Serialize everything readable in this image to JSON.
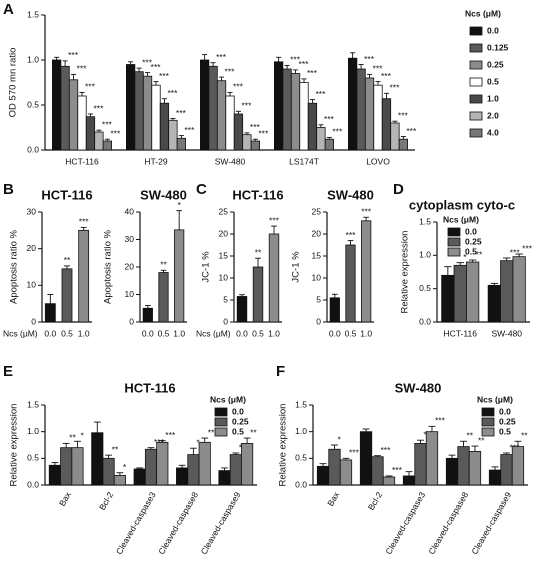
{
  "chart_data": [
    {
      "type": "bar",
      "panel": "A",
      "ylabel": "OD 570 mn ratio",
      "legend_title": "Ncs (μM)",
      "categories": [
        "HCT-116",
        "HT-29",
        "SW-480",
        "LS174T",
        "LOVO"
      ],
      "ylim": [
        0,
        1.5
      ],
      "yticks": [
        {
          "value": 0,
          "label": "0.0"
        },
        0.5,
        {
          "value": 1,
          "label": "1.0"
        },
        1.5
      ],
      "series": [
        {
          "name": "0.0",
          "color": "#111111",
          "values": [
            1.0,
            0.95,
            1.0,
            0.98,
            1.02
          ],
          "errors": [
            0.03,
            0.03,
            0.06,
            0.05,
            0.06
          ]
        },
        {
          "name": "0.125",
          "color": "#5a5a5a",
          "values": [
            0.93,
            0.87,
            0.93,
            0.9,
            0.9
          ],
          "errors": [
            0.06,
            0.04,
            0.04,
            0.04,
            0.05
          ],
          "sig": [
            "***",
            "***",
            "***",
            "***",
            "***"
          ]
        },
        {
          "name": "0.25",
          "color": "#8c8c8c",
          "values": [
            0.78,
            0.82,
            0.77,
            0.85,
            0.8
          ],
          "errors": [
            0.06,
            0.04,
            0.04,
            0.04,
            0.04
          ],
          "sig": [
            "***",
            "***",
            "***",
            "***",
            "***"
          ]
        },
        {
          "name": "0.5",
          "color": "#ffffff",
          "values": [
            0.6,
            0.72,
            0.6,
            0.75,
            0.72
          ],
          "errors": [
            0.04,
            0.04,
            0.04,
            0.04,
            0.04
          ],
          "sig": [
            "***",
            "***",
            "***",
            "***",
            "***"
          ]
        },
        {
          "name": "1.0",
          "color": "#4a4a4a",
          "values": [
            0.37,
            0.52,
            0.4,
            0.52,
            0.57
          ],
          "errors": [
            0.03,
            0.05,
            0.03,
            0.04,
            0.06
          ],
          "sig": [
            "***",
            "***",
            "***",
            "***",
            "***"
          ]
        },
        {
          "name": "2.0",
          "color": "#b5b5b5",
          "values": [
            0.2,
            0.33,
            0.17,
            0.25,
            0.3
          ],
          "errors": [
            0.02,
            0.02,
            0.02,
            0.03,
            0.02
          ],
          "sig": [
            "***",
            "***",
            "***",
            "***",
            "***"
          ]
        },
        {
          "name": "4.0",
          "color": "#777777",
          "values": [
            0.1,
            0.13,
            0.1,
            0.12,
            0.12
          ],
          "errors": [
            0.02,
            0.03,
            0.02,
            0.02,
            0.03
          ],
          "sig": [
            "***",
            "***",
            "***",
            "***",
            "***"
          ]
        }
      ]
    },
    {
      "type": "bar",
      "panel": "B",
      "title": "HCT-116",
      "ylabel": "Apoptosis ratio %",
      "xlabel": "Ncs (μM)",
      "categories": [
        "0.0",
        "0.5",
        "1.0"
      ],
      "values": [
        5,
        14.5,
        25
      ],
      "errors": [
        2.5,
        0.8,
        0.8
      ],
      "colors": [
        "#111111",
        "#5a5a5a",
        "#8c8c8c"
      ],
      "sig": [
        null,
        "**",
        "***"
      ],
      "ylim": [
        0,
        30
      ],
      "yticks": [
        0,
        10,
        20,
        30
      ]
    },
    {
      "type": "bar",
      "title": "SW-480",
      "ylabel": "Apoptosis ratio %",
      "categories": [
        "0.0",
        "0.5",
        "1.0"
      ],
      "values": [
        5,
        18,
        33.5
      ],
      "errors": [
        1,
        0.8,
        7
      ],
      "colors": [
        "#111111",
        "#5a5a5a",
        "#8c8c8c"
      ],
      "sig": [
        null,
        "**",
        "*"
      ],
      "ylim": [
        0,
        40
      ],
      "yticks": [
        0,
        10,
        20,
        30,
        40
      ]
    },
    {
      "type": "bar",
      "panel": "C",
      "title": "HCT-116",
      "ylabel": "JC-1 %",
      "xlabel": "Ncs (μM)",
      "categories": [
        "0.0",
        "0.5",
        "1.0"
      ],
      "values": [
        5.8,
        12.5,
        20
      ],
      "errors": [
        0.4,
        2,
        1.8
      ],
      "colors": [
        "#111111",
        "#5a5a5a",
        "#8c8c8c"
      ],
      "sig": [
        null,
        "**",
        "***"
      ],
      "ylim": [
        0,
        25
      ],
      "yticks": [
        0,
        5,
        10,
        15,
        20,
        25
      ]
    },
    {
      "type": "bar",
      "title": "SW-480",
      "ylabel": "JC-1 %",
      "categories": [
        "0.0",
        "0.5",
        "1.0"
      ],
      "values": [
        5.5,
        17.5,
        23
      ],
      "errors": [
        0.8,
        1,
        0.8
      ],
      "colors": [
        "#111111",
        "#5a5a5a",
        "#8c8c8c"
      ],
      "sig": [
        null,
        "***",
        "***"
      ],
      "ylim": [
        0,
        25
      ],
      "yticks": [
        0,
        5,
        10,
        15,
        20,
        25
      ]
    },
    {
      "type": "bar",
      "panel": "D",
      "title": "cytoplasm cyto-c",
      "ylabel": "Relative expression",
      "legend_title": "Ncs (μM)",
      "categories": [
        "HCT-116",
        "SW-480"
      ],
      "ylim": [
        0,
        1.5
      ],
      "yticks": [
        {
          "value": 0,
          "label": "0.0"
        },
        0.5,
        {
          "value": 1,
          "label": "1.0"
        },
        1.5
      ],
      "series": [
        {
          "name": "0.0",
          "color": "#111111",
          "values": [
            0.7,
            0.55
          ],
          "errors": [
            0.13,
            0.03
          ]
        },
        {
          "name": "0.25",
          "color": "#5a5a5a",
          "values": [
            0.85,
            0.92
          ],
          "errors": [
            0.04,
            0.04
          ],
          "sig": [
            "*",
            "***"
          ]
        },
        {
          "name": "0.5",
          "color": "#8c8c8c",
          "values": [
            0.9,
            0.98
          ],
          "errors": [
            0.03,
            0.04
          ],
          "sig": [
            "**",
            "***"
          ]
        }
      ]
    },
    {
      "type": "bar",
      "panel": "E",
      "title": "HCT-116",
      "ylabel": "Relative expression",
      "legend_title": "Ncs (μM)",
      "categories": [
        "Bax",
        "Bcl-2",
        "Cleaved-caspase3",
        "Cleaved-caspase8",
        "Cleaved-caspase9"
      ],
      "ylim": [
        0,
        1.5
      ],
      "yticks": [
        {
          "value": 0,
          "label": "0.0"
        },
        0.5,
        {
          "value": 1,
          "label": "1.0"
        },
        1.5
      ],
      "series": [
        {
          "name": "0.0",
          "color": "#111111",
          "values": [
            0.37,
            0.98,
            0.3,
            0.32,
            0.27
          ],
          "errors": [
            0.05,
            0.2,
            0.02,
            0.05,
            0.05
          ]
        },
        {
          "name": "0.25",
          "color": "#5a5a5a",
          "values": [
            0.7,
            0.5,
            0.67,
            0.57,
            0.57
          ],
          "errors": [
            0.08,
            0.06,
            0.03,
            0.12,
            0.03
          ],
          "sig": [
            "**",
            "**",
            "***",
            "*",
            "***"
          ]
        },
        {
          "name": "0.5",
          "color": "#8c8c8c",
          "values": [
            0.7,
            0.18,
            0.8,
            0.8,
            0.78
          ],
          "errors": [
            0.12,
            0.05,
            0.03,
            0.08,
            0.1
          ],
          "sig": [
            "*",
            "*",
            "***",
            "***",
            "**"
          ]
        }
      ]
    },
    {
      "type": "bar",
      "panel": "F",
      "title": "SW-480",
      "ylabel": "Relative expression",
      "legend_title": "Ncs (μM)",
      "categories": [
        "Bax",
        "Bcl-2",
        "Cleaved-caspase3",
        "Cleaved-caspase8",
        "Cleaved-caspase9"
      ],
      "ylim": [
        0,
        1.5
      ],
      "yticks": [
        {
          "value": 0,
          "label": "0.0"
        },
        0.5,
        {
          "value": 1,
          "label": "1.0"
        },
        1.5
      ],
      "series": [
        {
          "name": "0.0",
          "color": "#111111",
          "values": [
            0.35,
            1.0,
            0.17,
            0.5,
            0.28
          ],
          "errors": [
            0.05,
            0.05,
            0.08,
            0.06,
            0.06
          ]
        },
        {
          "name": "0.25",
          "color": "#5a5a5a",
          "values": [
            0.67,
            0.53,
            0.78,
            0.72,
            0.57
          ],
          "errors": [
            0.08,
            0.02,
            0.06,
            0.1,
            0.03
          ],
          "sig": [
            "*",
            "***",
            "***",
            "**",
            "***"
          ]
        },
        {
          "name": "0.5",
          "color": "#8c8c8c",
          "values": [
            0.47,
            0.15,
            1.0,
            0.63,
            0.72
          ],
          "errors": [
            0.03,
            0.02,
            0.1,
            0.1,
            0.1
          ],
          "sig": [
            "***",
            "***",
            "***",
            "**",
            "**"
          ]
        }
      ]
    }
  ]
}
